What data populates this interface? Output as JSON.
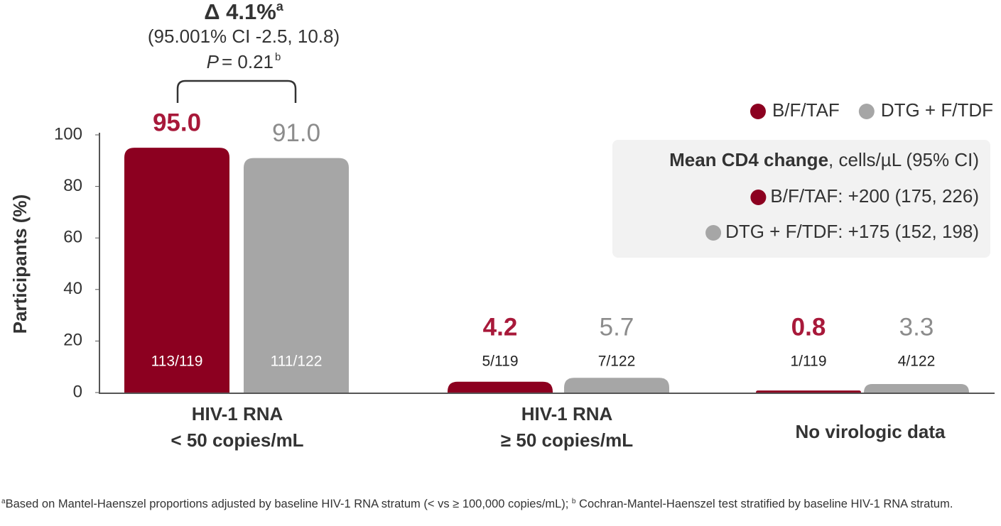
{
  "chart_data": {
    "type": "bar",
    "y_label": "Participants (%)",
    "ylim": [
      0,
      100
    ],
    "yticks": [
      0,
      20,
      40,
      60,
      80,
      100
    ],
    "categories": [
      [
        "HIV-1 RNA",
        "< 50 copies/mL"
      ],
      [
        "HIV-1 RNA",
        "≥ 50 copies/mL"
      ],
      [
        "No virologic data"
      ]
    ],
    "series": [
      {
        "name": "B/F/TAF",
        "color": "#8c0020",
        "label_color": "#a8193a",
        "values": [
          95.0,
          4.2,
          0.8
        ],
        "value_labels": [
          "95.0",
          "4.2",
          "0.8"
        ],
        "fraction_labels": [
          "113/119",
          "5/119",
          "1/119"
        ]
      },
      {
        "name": "DTG + F/TDF",
        "color": "#a6a6a6",
        "label_color": "#8c8c8c",
        "values": [
          91.0,
          5.7,
          3.3
        ],
        "value_labels": [
          "91.0",
          "5.7",
          "3.3"
        ],
        "fraction_labels": [
          "111/122",
          "7/122",
          "4/122"
        ]
      }
    ],
    "annotation": {
      "delta": "Δ 4.1%",
      "delta_note": "a",
      "ci": "(95.001% CI -2.5, 10.8)",
      "p_symbol": "P",
      "p_value": "= 0.21",
      "p_note": "b"
    },
    "inset": {
      "title_bold": "Mean CD4 change",
      "title_rest": ", cells/µL (95% CI)",
      "items": [
        "B/F/TAF: +200 (175, 226)",
        "DTG + F/TDF: +175 (152, 198)"
      ]
    },
    "footnote": {
      "note_a": "a",
      "text_a": "Based on Mantel-Haenszel proportions adjusted by baseline HIV-1 RNA stratum (< vs ≥ 100,000 copies/mL); ",
      "note_b": "b",
      "text_b": " Cochran-Mantel-Haenszel test stratified by baseline HIV-1 RNA stratum."
    }
  }
}
